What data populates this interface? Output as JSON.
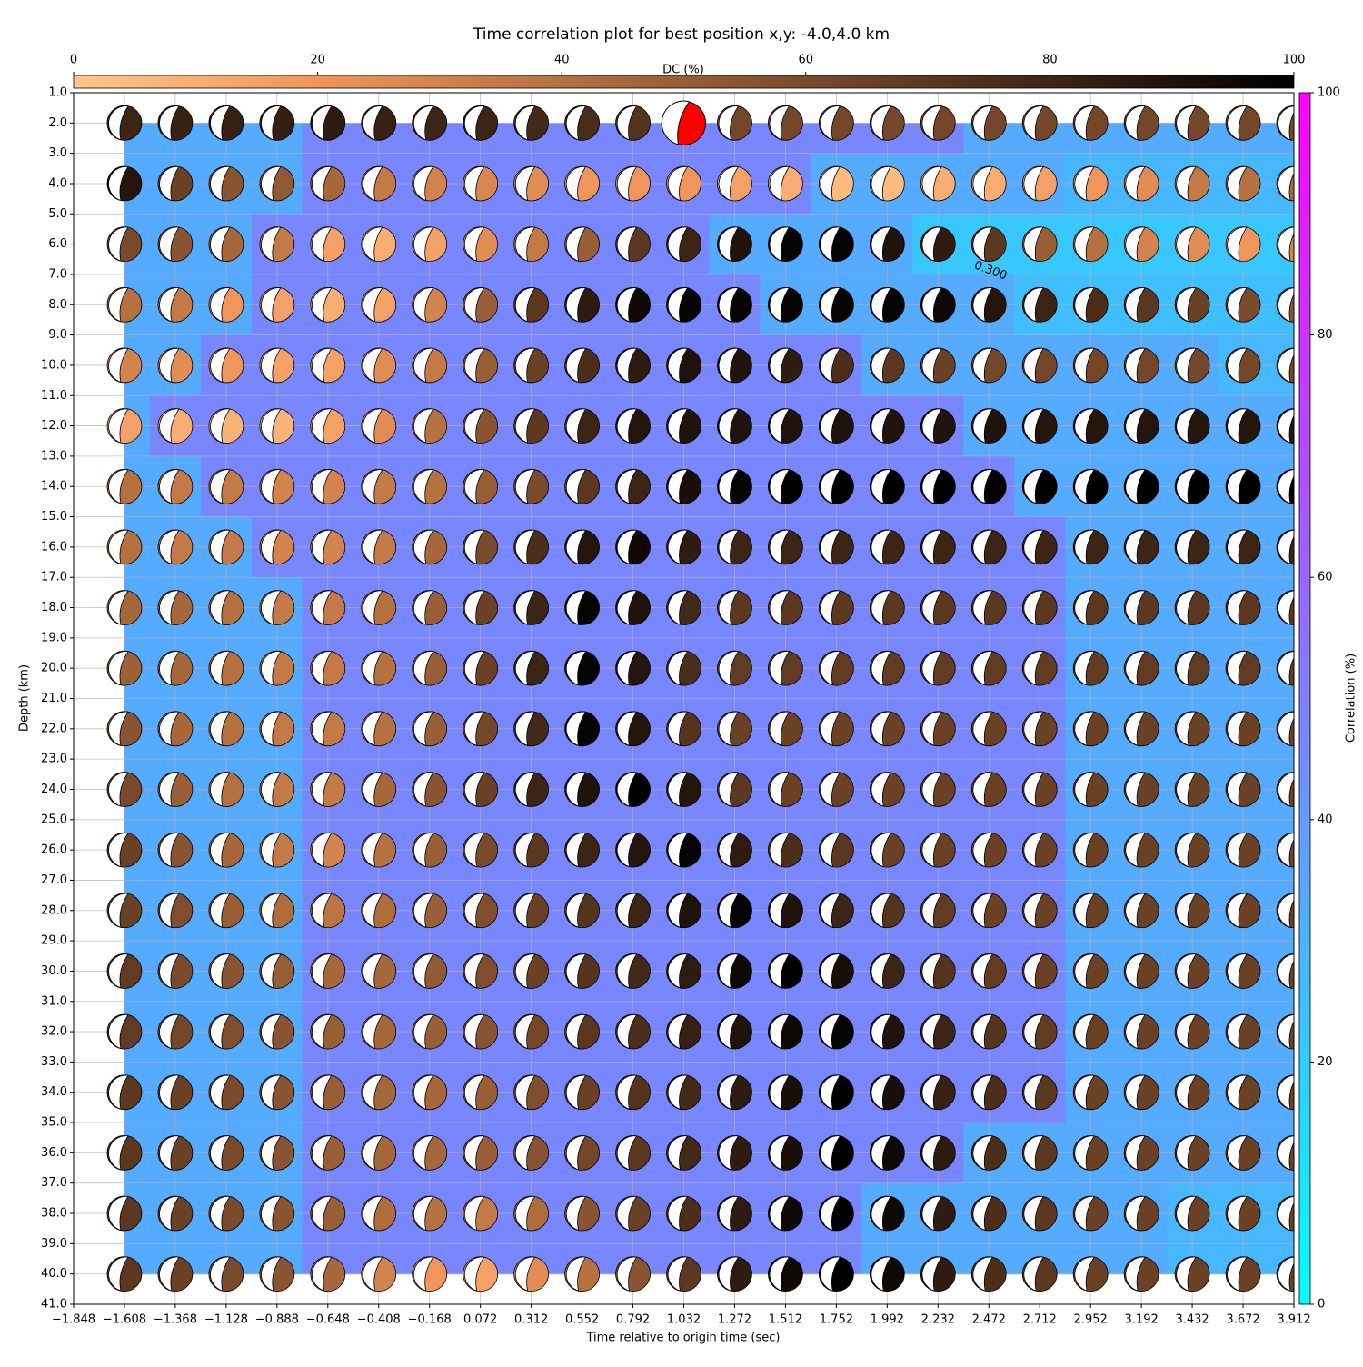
{
  "chart_data": {
    "type": "beachball-grid",
    "title": "Time correlation plot for best position x,y: -4.0,4.0 km",
    "xlabel": "Time relative to origin time (sec)",
    "ylabel": "Depth (km)",
    "dc_label": "DC (%)",
    "corr_label": "Correlation (%)",
    "contour_label": "0.300",
    "xlim": [
      -1.848,
      3.912
    ],
    "ylim": [
      41,
      1
    ],
    "grid": true,
    "xticks": [
      {
        "value": -1.848,
        "label": "−1.848"
      },
      {
        "value": -1.608,
        "label": "−1.608"
      },
      {
        "value": -1.368,
        "label": "−1.368"
      },
      {
        "value": -1.128,
        "label": "−1.128"
      },
      {
        "value": -0.888,
        "label": "−0.888"
      },
      {
        "value": -0.648,
        "label": "−0.648"
      },
      {
        "value": -0.408,
        "label": "−0.408"
      },
      {
        "value": -0.168,
        "label": "−0.168"
      },
      0.072,
      0.312,
      0.552,
      0.792,
      1.032,
      1.272,
      1.512,
      1.752,
      1.992,
      2.232,
      2.472,
      2.712,
      2.952,
      3.192,
      3.432,
      3.672,
      3.912
    ],
    "yticks": [
      {
        "value": 1,
        "label": "1.0"
      },
      {
        "value": 2,
        "label": "2.0"
      },
      {
        "value": 3,
        "label": "3.0"
      },
      {
        "value": 4,
        "label": "4.0"
      },
      {
        "value": 5,
        "label": "5.0"
      },
      {
        "value": 6,
        "label": "6.0"
      },
      {
        "value": 7,
        "label": "7.0"
      },
      {
        "value": 8,
        "label": "8.0"
      },
      {
        "value": 9,
        "label": "9.0"
      },
      {
        "value": 10,
        "label": "10.0"
      },
      {
        "value": 11,
        "label": "11.0"
      },
      {
        "value": 12,
        "label": "12.0"
      },
      {
        "value": 13,
        "label": "13.0"
      },
      {
        "value": 14,
        "label": "14.0"
      },
      {
        "value": 15,
        "label": "15.0"
      },
      {
        "value": 16,
        "label": "16.0"
      },
      {
        "value": 17,
        "label": "17.0"
      },
      {
        "value": 18,
        "label": "18.0"
      },
      {
        "value": 19,
        "label": "19.0"
      },
      {
        "value": 20,
        "label": "20.0"
      },
      {
        "value": 21,
        "label": "21.0"
      },
      {
        "value": 22,
        "label": "22.0"
      },
      {
        "value": 23,
        "label": "23.0"
      },
      {
        "value": 24,
        "label": "24.0"
      },
      {
        "value": 25,
        "label": "25.0"
      },
      {
        "value": 26,
        "label": "26.0"
      },
      {
        "value": 27,
        "label": "27.0"
      },
      {
        "value": 28,
        "label": "28.0"
      },
      {
        "value": 29,
        "label": "29.0"
      },
      {
        "value": 30,
        "label": "30.0"
      },
      {
        "value": 31,
        "label": "31.0"
      },
      {
        "value": 32,
        "label": "32.0"
      },
      {
        "value": 33,
        "label": "33.0"
      },
      {
        "value": 34,
        "label": "34.0"
      },
      {
        "value": 35,
        "label": "35.0"
      },
      {
        "value": 36,
        "label": "36.0"
      },
      {
        "value": 37,
        "label": "37.0"
      },
      {
        "value": 38,
        "label": "38.0"
      },
      {
        "value": 39,
        "label": "39.0"
      },
      {
        "value": 40,
        "label": "40.0"
      },
      {
        "value": 41,
        "label": "41.0"
      }
    ],
    "dc_lim": [
      0,
      100
    ],
    "dc_ticks": [
      0,
      20,
      40,
      60,
      80,
      100
    ],
    "corr_lim": [
      0,
      100
    ],
    "corr_ticks": [
      0,
      20,
      40,
      60,
      80,
      100
    ],
    "dc_colormap": [
      "#ffc68a",
      "#f0955c",
      "#b57140",
      "#7a4a2c",
      "#3d2515",
      "#000000"
    ],
    "corr_colormap": [
      "#00ffff",
      "#ff00ff"
    ],
    "best_color": "#ff0000",
    "best_x": 1.032,
    "best_depth": 2,
    "x": [
      -1.608,
      -1.368,
      -1.128,
      -0.888,
      -0.648,
      -0.408,
      -0.168,
      0.072,
      0.312,
      0.552,
      0.792,
      1.032,
      1.272,
      1.512,
      1.752,
      1.992,
      2.232,
      2.472,
      2.712,
      2.952,
      3.192,
      3.432,
      3.672,
      3.912
    ],
    "depths": [
      2,
      4,
      6,
      8,
      10,
      12,
      14,
      16,
      18,
      20,
      22,
      24,
      26,
      28,
      30,
      32,
      34,
      36,
      38,
      40
    ],
    "correlation": [
      [
        33,
        33,
        33,
        33,
        47,
        47,
        47,
        47,
        47,
        47,
        47,
        47,
        47,
        47,
        47,
        47,
        47,
        33,
        33,
        33,
        33,
        33,
        33,
        33
      ],
      [
        33,
        33,
        33,
        33,
        47,
        47,
        47,
        47,
        47,
        47,
        47,
        47,
        47,
        47,
        33,
        33,
        33,
        33,
        33,
        28,
        28,
        28,
        28,
        28
      ],
      [
        33,
        33,
        33,
        47,
        47,
        47,
        47,
        47,
        47,
        47,
        47,
        47,
        33,
        33,
        33,
        33,
        22,
        22,
        22,
        22,
        22,
        22,
        22,
        22
      ],
      [
        33,
        33,
        33,
        47,
        47,
        47,
        47,
        47,
        47,
        47,
        47,
        47,
        47,
        33,
        33,
        33,
        33,
        33,
        25,
        25,
        25,
        25,
        25,
        25
      ],
      [
        33,
        33,
        47,
        47,
        47,
        47,
        47,
        47,
        47,
        47,
        47,
        47,
        47,
        47,
        47,
        33,
        33,
        33,
        33,
        33,
        33,
        33,
        28,
        28
      ],
      [
        33,
        47,
        47,
        47,
        47,
        47,
        47,
        47,
        47,
        47,
        47,
        47,
        47,
        47,
        47,
        47,
        47,
        33,
        33,
        33,
        33,
        33,
        33,
        33
      ],
      [
        33,
        33,
        47,
        47,
        47,
        47,
        47,
        47,
        47,
        47,
        47,
        47,
        47,
        47,
        47,
        47,
        47,
        47,
        33,
        33,
        33,
        33,
        33,
        33
      ],
      [
        33,
        33,
        33,
        47,
        47,
        47,
        47,
        47,
        47,
        47,
        47,
        47,
        47,
        47,
        47,
        47,
        47,
        47,
        47,
        33,
        33,
        33,
        33,
        33
      ],
      [
        33,
        33,
        33,
        33,
        47,
        47,
        47,
        47,
        47,
        47,
        47,
        47,
        47,
        47,
        47,
        47,
        47,
        47,
        47,
        33,
        33,
        33,
        33,
        33
      ],
      [
        33,
        33,
        33,
        33,
        47,
        47,
        47,
        47,
        47,
        47,
        47,
        47,
        47,
        47,
        47,
        47,
        47,
        47,
        47,
        33,
        33,
        33,
        33,
        33
      ],
      [
        33,
        33,
        33,
        33,
        47,
        47,
        47,
        47,
        47,
        47,
        47,
        47,
        47,
        47,
        47,
        47,
        47,
        47,
        47,
        33,
        33,
        33,
        33,
        33
      ],
      [
        33,
        33,
        33,
        33,
        47,
        47,
        47,
        47,
        47,
        47,
        47,
        47,
        47,
        47,
        47,
        47,
        47,
        47,
        47,
        33,
        33,
        33,
        33,
        33
      ],
      [
        33,
        33,
        33,
        33,
        47,
        47,
        47,
        47,
        47,
        47,
        47,
        47,
        47,
        47,
        47,
        47,
        47,
        47,
        47,
        33,
        33,
        33,
        33,
        33
      ],
      [
        33,
        33,
        33,
        33,
        47,
        47,
        47,
        47,
        47,
        47,
        47,
        47,
        47,
        47,
        47,
        47,
        47,
        47,
        47,
        33,
        33,
        33,
        33,
        33
      ],
      [
        33,
        33,
        33,
        33,
        47,
        47,
        47,
        47,
        47,
        47,
        47,
        47,
        47,
        47,
        47,
        47,
        47,
        47,
        47,
        33,
        33,
        33,
        33,
        33
      ],
      [
        33,
        33,
        33,
        33,
        47,
        47,
        47,
        47,
        47,
        47,
        47,
        47,
        47,
        47,
        47,
        47,
        47,
        47,
        47,
        33,
        33,
        33,
        33,
        33
      ],
      [
        33,
        33,
        33,
        33,
        47,
        47,
        47,
        47,
        47,
        47,
        47,
        47,
        47,
        47,
        47,
        47,
        47,
        47,
        47,
        33,
        33,
        33,
        33,
        33
      ],
      [
        33,
        33,
        33,
        33,
        47,
        47,
        47,
        47,
        47,
        47,
        47,
        47,
        47,
        47,
        47,
        47,
        47,
        33,
        33,
        33,
        33,
        33,
        33,
        33
      ],
      [
        33,
        33,
        33,
        33,
        47,
        47,
        47,
        47,
        47,
        47,
        47,
        47,
        47,
        47,
        47,
        33,
        33,
        33,
        33,
        33,
        33,
        28,
        28,
        28
      ],
      [
        33,
        33,
        33,
        33,
        47,
        47,
        47,
        47,
        47,
        47,
        47,
        47,
        47,
        47,
        47,
        33,
        33,
        33,
        33,
        33,
        33,
        28,
        28,
        28
      ]
    ],
    "dc": [
      [
        80,
        82,
        82,
        83,
        85,
        82,
        80,
        80,
        78,
        76,
        72,
        55,
        62,
        62,
        62,
        62,
        62,
        62,
        62,
        62,
        62,
        62,
        62,
        62
      ],
      [
        88,
        65,
        55,
        52,
        45,
        35,
        30,
        28,
        25,
        20,
        20,
        20,
        15,
        10,
        5,
        5,
        10,
        10,
        15,
        20,
        25,
        35,
        40,
        45
      ],
      [
        60,
        55,
        45,
        35,
        15,
        10,
        15,
        25,
        35,
        50,
        70,
        80,
        90,
        98,
        98,
        90,
        85,
        70,
        50,
        40,
        30,
        25,
        20,
        30
      ],
      [
        40,
        35,
        20,
        15,
        10,
        15,
        30,
        50,
        70,
        85,
        95,
        98,
        98,
        98,
        98,
        98,
        95,
        88,
        80,
        75,
        70,
        65,
        60,
        55
      ],
      [
        30,
        25,
        20,
        15,
        15,
        25,
        35,
        50,
        65,
        75,
        85,
        90,
        90,
        85,
        75,
        70,
        65,
        62,
        62,
        62,
        62,
        62,
        62,
        62
      ],
      [
        15,
        10,
        8,
        8,
        15,
        25,
        40,
        55,
        70,
        80,
        88,
        90,
        90,
        90,
        90,
        90,
        90,
        90,
        88,
        88,
        88,
        88,
        88,
        88
      ],
      [
        40,
        35,
        35,
        30,
        30,
        35,
        40,
        50,
        60,
        70,
        80,
        92,
        98,
        100,
        100,
        100,
        100,
        100,
        100,
        100,
        100,
        100,
        100,
        100
      ],
      [
        40,
        35,
        35,
        30,
        30,
        35,
        45,
        60,
        75,
        88,
        95,
        85,
        80,
        80,
        80,
        80,
        80,
        80,
        80,
        80,
        80,
        80,
        80,
        80
      ],
      [
        45,
        45,
        40,
        35,
        35,
        40,
        50,
        65,
        80,
        98,
        90,
        78,
        70,
        70,
        70,
        70,
        70,
        70,
        70,
        70,
        70,
        70,
        70,
        70
      ],
      [
        48,
        45,
        40,
        35,
        35,
        40,
        50,
        65,
        80,
        98,
        88,
        75,
        68,
        68,
        68,
        68,
        68,
        68,
        68,
        68,
        68,
        68,
        68,
        68
      ],
      [
        55,
        45,
        40,
        35,
        35,
        40,
        50,
        62,
        78,
        98,
        88,
        72,
        65,
        65,
        65,
        65,
        65,
        65,
        65,
        65,
        65,
        65,
        65,
        65
      ],
      [
        60,
        50,
        40,
        35,
        35,
        45,
        55,
        65,
        80,
        90,
        100,
        88,
        70,
        65,
        65,
        65,
        65,
        65,
        65,
        65,
        65,
        65,
        65,
        65
      ],
      [
        65,
        55,
        45,
        35,
        30,
        40,
        50,
        60,
        70,
        80,
        88,
        98,
        85,
        75,
        70,
        65,
        65,
        65,
        65,
        65,
        65,
        65,
        65,
        65
      ],
      [
        65,
        58,
        50,
        42,
        38,
        42,
        50,
        58,
        65,
        72,
        80,
        90,
        98,
        90,
        80,
        72,
        68,
        65,
        65,
        65,
        65,
        65,
        65,
        65
      ],
      [
        68,
        60,
        55,
        50,
        45,
        45,
        52,
        58,
        65,
        72,
        78,
        85,
        95,
        100,
        92,
        80,
        72,
        68,
        65,
        65,
        65,
        65,
        65,
        65
      ],
      [
        68,
        62,
        58,
        55,
        50,
        45,
        50,
        55,
        62,
        70,
        75,
        82,
        90,
        95,
        98,
        90,
        80,
        72,
        68,
        65,
        65,
        65,
        65,
        65
      ],
      [
        70,
        65,
        60,
        55,
        50,
        45,
        45,
        50,
        58,
        65,
        72,
        78,
        85,
        92,
        100,
        92,
        82,
        75,
        70,
        65,
        65,
        65,
        65,
        65
      ],
      [
        70,
        65,
        60,
        55,
        50,
        45,
        45,
        50,
        55,
        62,
        70,
        78,
        85,
        92,
        100,
        95,
        85,
        75,
        70,
        65,
        65,
        65,
        65,
        65
      ],
      [
        70,
        65,
        60,
        55,
        50,
        42,
        40,
        35,
        42,
        55,
        65,
        75,
        85,
        95,
        100,
        95,
        85,
        75,
        70,
        65,
        65,
        65,
        65,
        65
      ],
      [
        70,
        65,
        60,
        55,
        45,
        30,
        20,
        15,
        25,
        40,
        55,
        70,
        85,
        95,
        100,
        95,
        85,
        75,
        70,
        65,
        65,
        65,
        65,
        65
      ]
    ]
  }
}
